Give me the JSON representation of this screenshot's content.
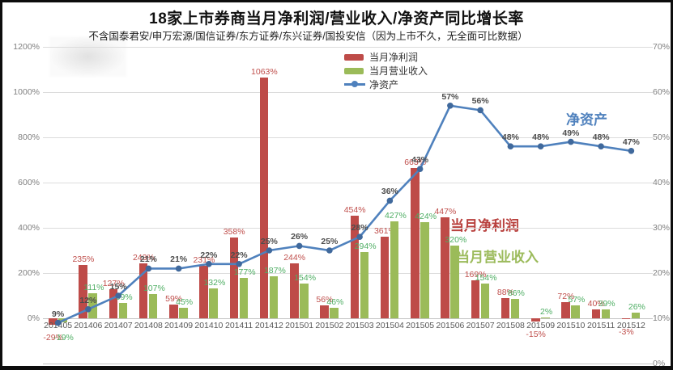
{
  "title": "18家上市券商当月净利润/营业收入/净资产同比增长率",
  "subtitle": "不含国泰君安/申万宏源/国信证券/东方证券/东兴证券/国投安信（因为上市不久，无全面可比数据）",
  "legend": {
    "items": [
      {
        "label": "当月净利润",
        "color": "#be4b48",
        "type": "bar"
      },
      {
        "label": "当月营业收入",
        "color": "#9bbb59",
        "type": "bar"
      },
      {
        "label": "净资产",
        "color": "#4f81bd",
        "type": "line"
      }
    ]
  },
  "annotations": {
    "net_profit": "当月净利润",
    "revenue": "当月营业收入",
    "net_asset": "净资产"
  },
  "axes": {
    "left": {
      "ticks": [
        {
          "label": "1200%",
          "value": 1200
        },
        {
          "label": "1000%",
          "value": 1000
        },
        {
          "label": "800%",
          "value": 800
        },
        {
          "label": "600%",
          "value": 600
        },
        {
          "label": "400%",
          "value": 400
        },
        {
          "label": "200%",
          "value": 200
        },
        {
          "label": "0%",
          "value": 0
        }
      ],
      "range": [
        -200,
        1200
      ]
    },
    "right": {
      "ticks": [
        {
          "label": "70%",
          "value": 70
        },
        {
          "label": "60%",
          "value": 60
        },
        {
          "label": "50%",
          "value": 50
        },
        {
          "label": "40%",
          "value": 40
        },
        {
          "label": "30%",
          "value": 30
        },
        {
          "label": "20%",
          "value": 20
        },
        {
          "label": "10%",
          "value": 10
        },
        {
          "label": "0%",
          "value": 0
        }
      ],
      "range": [
        0,
        70
      ]
    }
  },
  "chart_data": {
    "type": "bar+line combo",
    "categories": [
      "201405",
      "201406",
      "201407",
      "201408",
      "201409",
      "201410",
      "201411",
      "201412",
      "201501",
      "201502",
      "201503",
      "201504",
      "201505",
      "201506",
      "201507",
      "201508",
      "201509",
      "201510",
      "201511",
      "201512"
    ],
    "series": [
      {
        "name": "当月净利润",
        "type": "bar",
        "axis": "left",
        "color": "#be4b48",
        "values": [
          -29,
          235,
          127,
          243,
          59,
          231,
          358,
          1063,
          244,
          56,
          454,
          361,
          663,
          447,
          169,
          88,
          -15,
          72,
          40,
          -3
        ]
      },
      {
        "name": "当月营业收入",
        "type": "bar",
        "axis": "left",
        "color": "#9bbb59",
        "values": [
          -19,
          111,
          69,
          107,
          45,
          132,
          177,
          187,
          154,
          46,
          294,
          427,
          424,
          320,
          154,
          86,
          2,
          57,
          39,
          26
        ]
      },
      {
        "name": "净资产",
        "type": "line",
        "axis": "right",
        "color": "#4f81bd",
        "values": [
          9,
          12,
          15,
          21,
          21,
          22,
          22,
          25,
          26,
          25,
          28,
          36,
          43,
          57,
          56,
          48,
          48,
          49,
          48,
          47
        ]
      }
    ],
    "title": "18家上市券商当月净利润/营业收入/净资产同比增长率",
    "left_axis_range_pct": [
      -200,
      1200
    ],
    "right_axis_range_pct": [
      0,
      70
    ],
    "grid": true,
    "legend_position": "top-center"
  }
}
